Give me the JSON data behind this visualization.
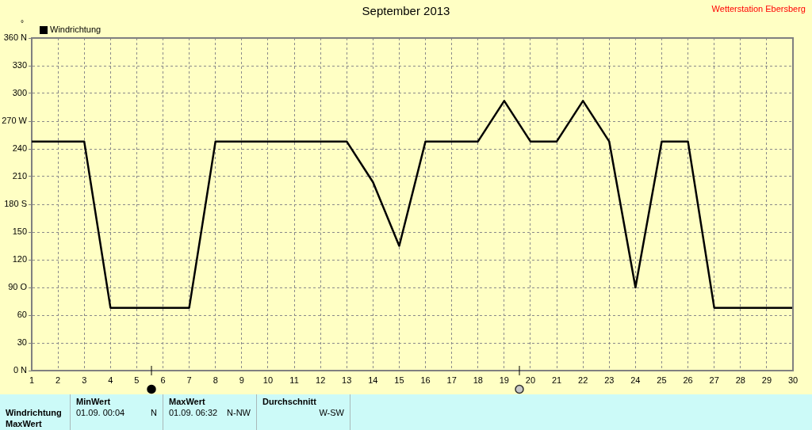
{
  "chart_data": {
    "type": "line",
    "title": "September 2013",
    "ylabel": "°",
    "x": [
      1,
      2,
      3,
      4,
      5,
      6,
      7,
      8,
      9,
      10,
      11,
      12,
      13,
      14,
      15,
      16,
      17,
      18,
      19,
      20,
      21,
      22,
      23,
      24,
      25,
      26,
      27,
      28,
      29,
      30
    ],
    "series": [
      {
        "name": "Windrichtung",
        "color": "#000000",
        "values": [
          248,
          248,
          248,
          68,
          68,
          68,
          68,
          248,
          248,
          248,
          248,
          248,
          248,
          204,
          135,
          248,
          248,
          248,
          292,
          248,
          248,
          292,
          248,
          90,
          248,
          248,
          68,
          68,
          68,
          68
        ]
      }
    ],
    "xlim": [
      1,
      30
    ],
    "xticks": [
      1,
      2,
      3,
      4,
      5,
      6,
      7,
      8,
      9,
      10,
      11,
      12,
      13,
      14,
      15,
      16,
      17,
      18,
      19,
      20,
      21,
      22,
      23,
      24,
      25,
      26,
      27,
      28,
      29,
      30
    ],
    "ylim": [
      0,
      360
    ],
    "yticks": [
      {
        "value": 0,
        "label": "0 N"
      },
      30,
      60,
      {
        "value": 90,
        "label": "90 O"
      },
      120,
      150,
      {
        "value": 180,
        "label": "180 S"
      },
      210,
      240,
      {
        "value": 270,
        "label": "270 W"
      },
      300,
      330,
      {
        "value": 360,
        "label": "360 N"
      }
    ],
    "grid": true,
    "legend": "top left",
    "annotations": [
      "Wetterstation Ebersberg",
      "MinWert",
      "MaxWert",
      "Durchschnitt",
      "Windrichtung",
      "01.09. 00:04",
      "N",
      "01.09. 06:32",
      "N-NW",
      "W-SW",
      "MaxWert"
    ]
  }
}
